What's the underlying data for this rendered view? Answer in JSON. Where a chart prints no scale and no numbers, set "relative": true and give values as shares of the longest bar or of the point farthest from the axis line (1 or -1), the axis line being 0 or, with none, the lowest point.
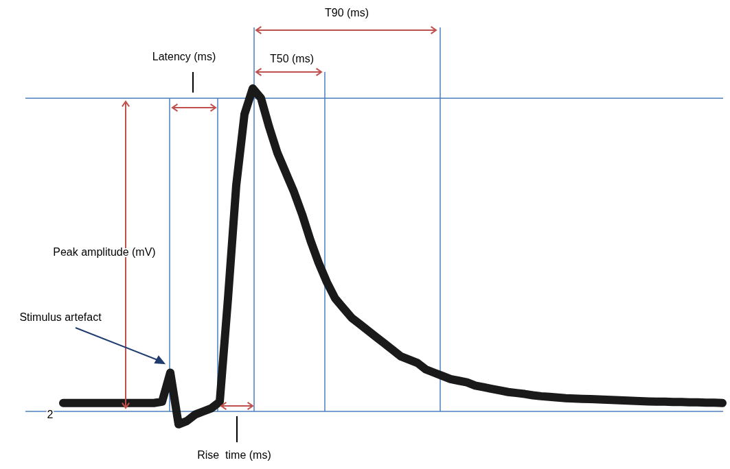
{
  "chart_data": {
    "type": "line",
    "relative": true,
    "categories": [
      null,
      null,
      null,
      null,
      null,
      null,
      null,
      null,
      null,
      null,
      null,
      null,
      null,
      null,
      null,
      null,
      null,
      null,
      null,
      null,
      null,
      null,
      null,
      null,
      null,
      null,
      null,
      null,
      null,
      null,
      null,
      null,
      null,
      null,
      null,
      null,
      null,
      null,
      null,
      null,
      null,
      null,
      null,
      null,
      null,
      null,
      null,
      null,
      null,
      null,
      null,
      null,
      null,
      null,
      null,
      null,
      null,
      null,
      null,
      null,
      null,
      null,
      null,
      null,
      null,
      null,
      null,
      null,
      null,
      null,
      null,
      null,
      null,
      null,
      null,
      null,
      null,
      null,
      null,
      null,
      null
    ],
    "series": [
      {
        "color": "#1a1a1a",
        "values": [
          0.026,
          0.026,
          0.026,
          0.026,
          0.026,
          0.026,
          0.026,
          0.026,
          0.026,
          0.026,
          0.026,
          0.026,
          0.03,
          0.12,
          -0.04,
          -0.03,
          -0.01,
          0,
          0.01,
          0.03,
          0.35,
          0.7,
          0.92,
          1,
          0.97,
          0.88,
          0.8,
          0.74,
          0.68,
          0.61,
          0.53,
          0.46,
          0.4,
          0.35,
          0.32,
          0.29,
          0.27,
          0.25,
          0.23,
          0.21,
          0.19,
          0.17,
          0.16,
          0.15,
          0.13,
          0.12,
          0.11,
          0.1,
          0.095,
          0.09,
          0.08,
          0.075,
          0.07,
          0.065,
          0.06,
          0.057,
          0.054,
          0.05,
          0.047,
          0.045,
          0.043,
          0.041,
          0.04,
          0.039,
          0.038,
          0.037,
          0.036,
          0.035,
          0.034,
          0.033,
          0.032,
          0.031,
          0.03,
          0.03,
          0.029,
          0.029,
          0.028,
          0.028,
          0.027,
          0.027,
          0.026
        ]
      }
    ],
    "ref_lines": [
      {
        "axis": "y",
        "value": 0,
        "color": "#4a7ebb"
      },
      {
        "axis": "y",
        "value": 0.97,
        "color": "#4a7ebb"
      }
    ],
    "annotations": [
      "T90 (ms)",
      "T50 (ms)",
      "Latency (ms)",
      "Peak amplitude (mV)",
      "Stimulus artefact",
      "Rise  time (ms)",
      "2"
    ]
  }
}
